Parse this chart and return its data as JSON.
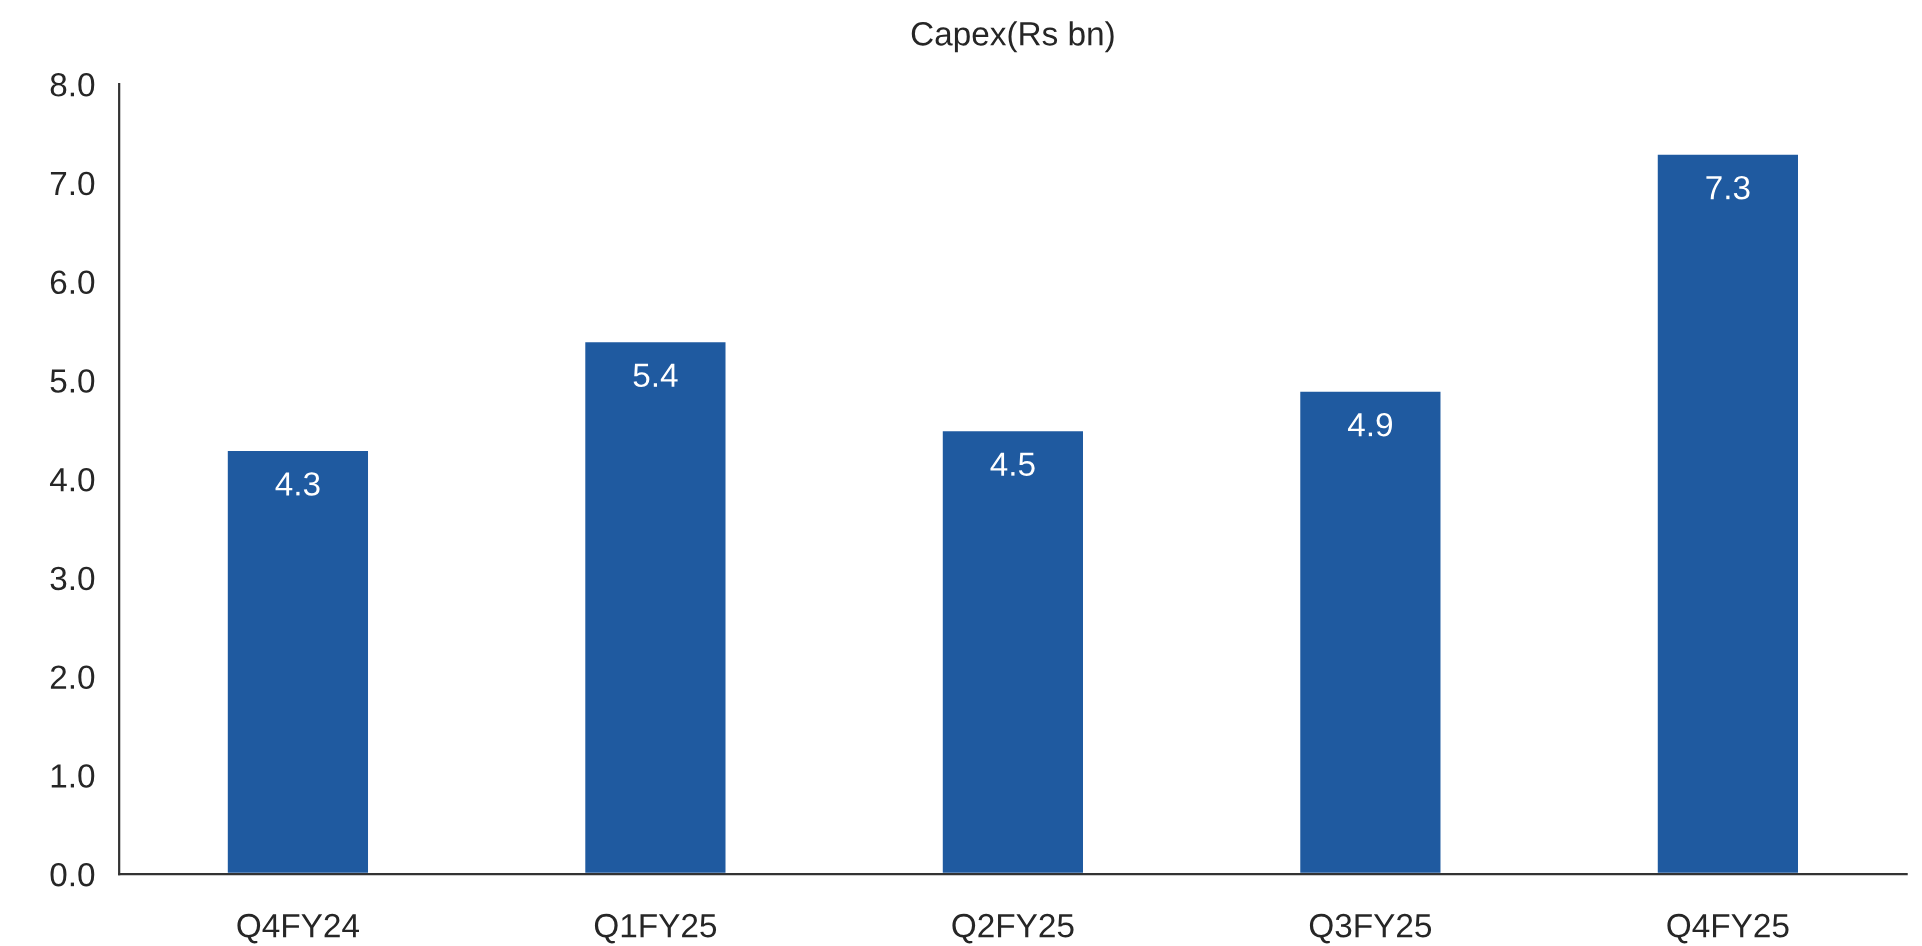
{
  "chart_data": {
    "type": "bar",
    "title": "Capex(Rs bn)",
    "categories": [
      "Q4FY24",
      "Q1FY25",
      "Q2FY25",
      "Q3FY25",
      "Q4FY25"
    ],
    "values": [
      4.3,
      5.4,
      4.5,
      4.9,
      7.3
    ],
    "color": "#1f5aa0",
    "ylim": [
      0,
      8
    ],
    "yticks": [
      {
        "value": 0,
        "label": "0.0"
      },
      {
        "value": 1,
        "label": "1.0"
      },
      {
        "value": 2,
        "label": "2.0"
      },
      {
        "value": 3,
        "label": "3.0"
      },
      {
        "value": 4,
        "label": "4.0"
      },
      {
        "value": 5,
        "label": "5.0"
      },
      {
        "value": 6,
        "label": "6.0"
      },
      {
        "value": 7,
        "label": "7.0"
      },
      {
        "value": 8,
        "label": "8.0"
      }
    ],
    "data_labels": true,
    "grid": false,
    "legend": false
  }
}
